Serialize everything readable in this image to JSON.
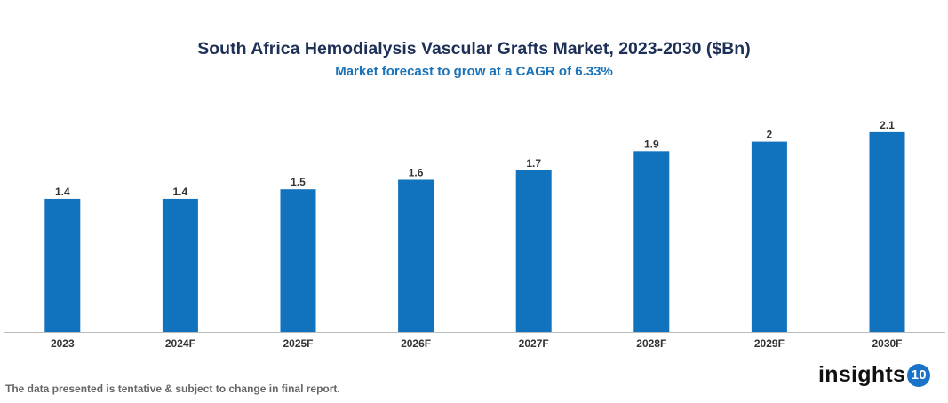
{
  "chart_data": {
    "type": "bar",
    "title": "South Africa Hemodialysis Vascular Grafts Market, 2023-2030 ($Bn)",
    "subtitle": "Market forecast to grow at a CAGR of 6.33%",
    "categories": [
      "2023",
      "2024F",
      "2025F",
      "2026F",
      "2027F",
      "2028F",
      "2029F",
      "2030F"
    ],
    "values": [
      1.4,
      1.4,
      1.5,
      1.6,
      1.7,
      1.9,
      2,
      2.1
    ],
    "xlabel": "",
    "ylabel": "",
    "grid": false,
    "legend": "none",
    "bar_color": "#1172bd"
  },
  "footer": {
    "note": "The data presented is tentative & subject to change in final report."
  },
  "logo": {
    "text": "insights",
    "badge": "10"
  }
}
